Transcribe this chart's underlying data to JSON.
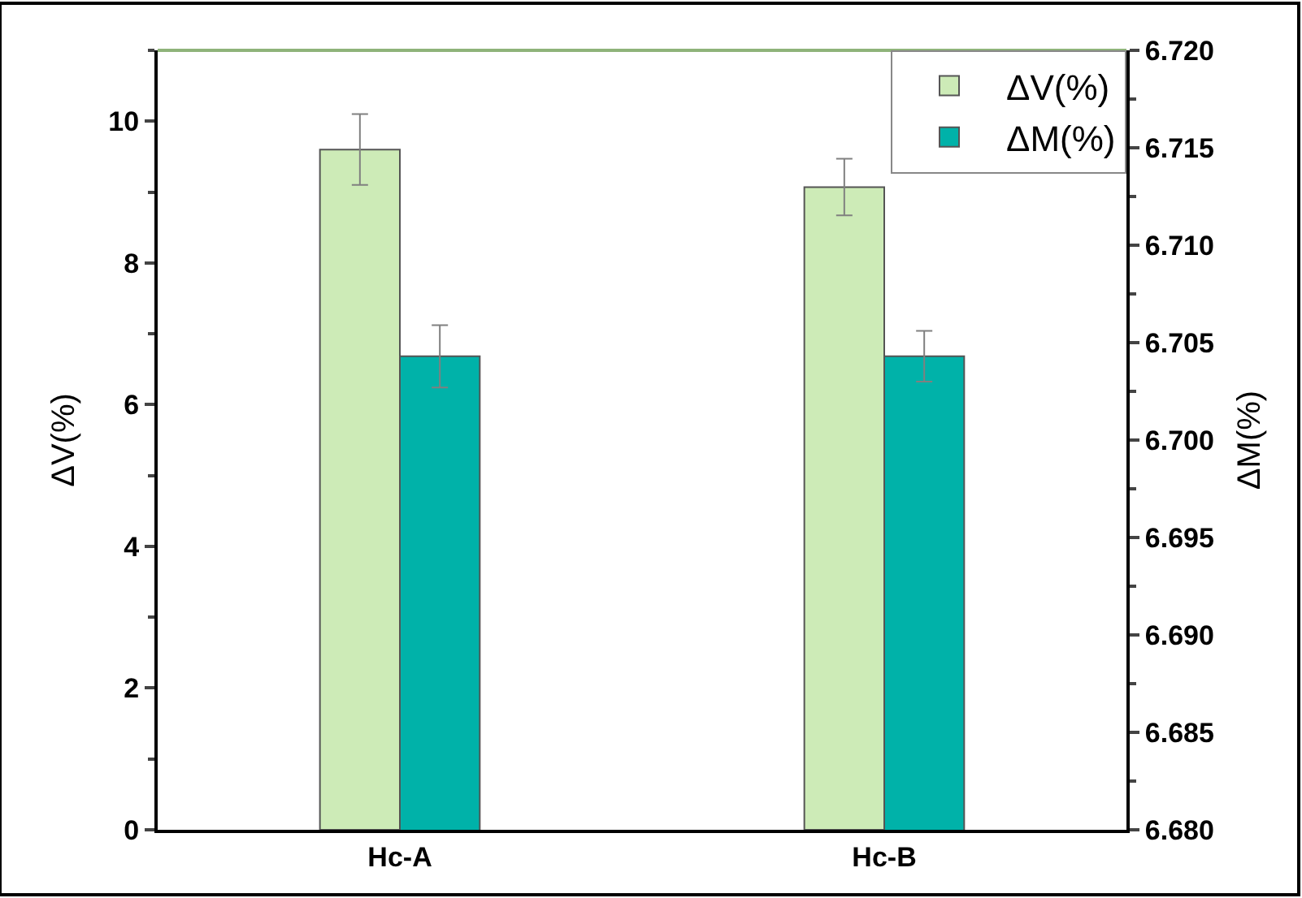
{
  "chart_data": {
    "type": "bar",
    "categories": [
      "Hc-A",
      "Hc-B"
    ],
    "ylabel": "ΔV(%)",
    "y2label": "ΔM(%)",
    "series": [
      {
        "name": "ΔV(%)",
        "color": "#cdebb7",
        "values": [
          9.6,
          9.07
        ],
        "errors": [
          0.5,
          0.4
        ]
      },
      {
        "name": "ΔM(%)",
        "color": "#00b2a9",
        "axis": "y2",
        "values": [
          6.7043,
          6.7043
        ],
        "errors": [
          0.0016,
          0.0013
        ]
      }
    ],
    "ylim": [
      0,
      11
    ],
    "yticks": [
      0,
      2,
      4,
      6,
      8,
      10
    ],
    "y2lim": [
      6.68,
      6.72
    ],
    "y2ticks": [
      {
        "value": 6.68,
        "label": "6.680"
      },
      {
        "value": 6.685,
        "label": "6.685"
      },
      {
        "value": 6.69,
        "label": "6.690"
      },
      {
        "value": 6.695,
        "label": "6.695"
      },
      {
        "value": 6.7,
        "label": "6.700"
      },
      {
        "value": 6.705,
        "label": "6.705"
      },
      {
        "value": 6.71,
        "label": "6.710"
      },
      {
        "value": 6.715,
        "label": "6.715"
      },
      {
        "value": 6.72,
        "label": "6.720"
      }
    ],
    "legend": "top right"
  }
}
